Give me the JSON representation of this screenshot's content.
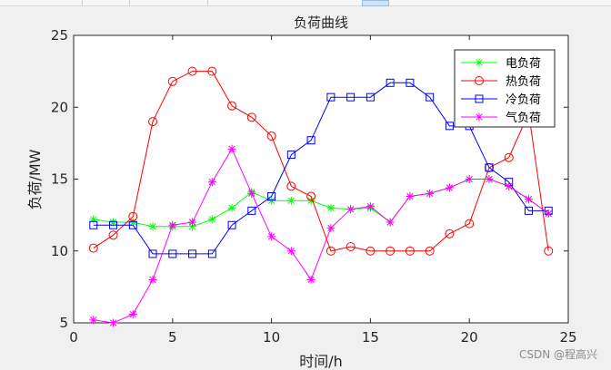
{
  "chart_data": {
    "type": "line",
    "title": "负荷曲线",
    "xlabel": "时间/h",
    "ylabel": "负荷/MW",
    "xlim": [
      0,
      25
    ],
    "ylim": [
      5,
      25
    ],
    "xticks": [
      0,
      5,
      10,
      15,
      20,
      25
    ],
    "yticks": [
      5,
      10,
      15,
      20,
      25
    ],
    "grid": false,
    "legend_position": "top-right",
    "x": [
      1,
      2,
      3,
      4,
      5,
      6,
      7,
      8,
      9,
      10,
      11,
      12,
      13,
      14,
      15,
      16,
      17,
      18,
      19,
      20,
      21,
      22,
      23,
      24
    ],
    "series": [
      {
        "name": "电负荷",
        "color": "#00ff00",
        "marker": "asterisk",
        "values": [
          12.2,
          12.0,
          12.0,
          11.7,
          11.7,
          11.7,
          12.2,
          13.0,
          14.1,
          13.5,
          13.5,
          13.5,
          13.0,
          12.9,
          13.0,
          12.0,
          13.8,
          14.0,
          14.4,
          15.0,
          15.0,
          14.5,
          13.6,
          12.6
        ]
      },
      {
        "name": "热负荷",
        "color": "#ff0000",
        "marker": "circle",
        "values": [
          10.2,
          11.1,
          12.4,
          19.0,
          21.8,
          22.5,
          22.5,
          20.1,
          19.3,
          18.0,
          14.5,
          13.8,
          10.0,
          10.3,
          10.0,
          10.0,
          10.0,
          10.0,
          11.2,
          11.9,
          15.8,
          16.5,
          19.6,
          10.0
        ]
      },
      {
        "name": "冷负荷",
        "color": "#0000ff",
        "marker": "square",
        "values": [
          11.8,
          11.8,
          11.8,
          9.8,
          9.8,
          9.8,
          9.8,
          11.8,
          12.8,
          13.8,
          16.7,
          17.7,
          20.7,
          20.7,
          20.7,
          21.7,
          21.7,
          20.7,
          18.7,
          18.7,
          15.8,
          14.8,
          12.8,
          12.8
        ]
      },
      {
        "name": "气负荷",
        "color": "#ff00ff",
        "marker": "asterisk",
        "values": [
          5.2,
          5.0,
          5.6,
          8.0,
          11.8,
          12.0,
          14.8,
          17.1,
          14.0,
          11.0,
          10.0,
          8.0,
          11.6,
          12.9,
          13.1,
          12.0,
          13.8,
          14.0,
          14.4,
          15.0,
          15.0,
          14.5,
          13.6,
          12.6
        ]
      }
    ]
  },
  "watermark": "CSDN @程高兴"
}
